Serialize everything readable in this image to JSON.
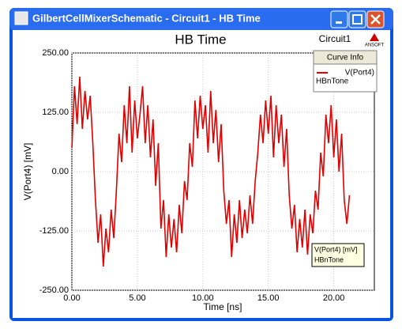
{
  "window": {
    "title": "GilbertCellMixerSchematic - Circuit1 - HB Time"
  },
  "chart_data": {
    "type": "line",
    "title": "HB Time",
    "subtitle": "Circuit1",
    "logo": "ANSOFT",
    "x_label": "Time [ns]",
    "y_label": "V(Port4) [mV]",
    "legend_title": "Curve Info",
    "legend_note": "HBnTone",
    "tooltip": {
      "name": "V(Port4) [mV]",
      "note": "HBnTone"
    },
    "xlim": [
      0,
      23.1
    ],
    "ylim": [
      -250,
      250
    ],
    "xticks": [
      {
        "value": 0,
        "label": "0.00"
      },
      {
        "value": 5,
        "label": "5.00"
      },
      {
        "value": 10,
        "label": "10.00"
      },
      {
        "value": 15,
        "label": "15.00"
      },
      {
        "value": 20,
        "label": "20.00"
      }
    ],
    "yticks": [
      {
        "value": -250,
        "label": "-250.00"
      },
      {
        "value": -125,
        "label": "-125.00"
      },
      {
        "value": 0,
        "label": "0.00"
      },
      {
        "value": 125,
        "label": "125.00"
      },
      {
        "value": 250,
        "label": "250.00"
      }
    ],
    "grid": true,
    "x": [
      0,
      0.2,
      0.4,
      0.6,
      0.8,
      1,
      1.2,
      1.4,
      1.6,
      1.8,
      2,
      2.2,
      2.4,
      2.6,
      2.8,
      3,
      3.2,
      3.4,
      3.6,
      3.8,
      4,
      4.2,
      4.4,
      4.6,
      4.8,
      5,
      5.2,
      5.4,
      5.6,
      5.8,
      6,
      6.2,
      6.4,
      6.6,
      6.8,
      7,
      7.2,
      7.4,
      7.6,
      7.8,
      8,
      8.2,
      8.4,
      8.6,
      8.8,
      9,
      9.2,
      9.4,
      9.6,
      9.8,
      10,
      10.2,
      10.4,
      10.6,
      10.8,
      11,
      11.2,
      11.4,
      11.6,
      11.8,
      12,
      12.2,
      12.4,
      12.6,
      12.8,
      13,
      13.2,
      13.4,
      13.6,
      13.8,
      14,
      14.2,
      14.4,
      14.6,
      14.8,
      15,
      15.2,
      15.4,
      15.6,
      15.8,
      16,
      16.2,
      16.4,
      16.6,
      16.8,
      17,
      17.2,
      17.4,
      17.6,
      17.8,
      18,
      18.2,
      18.4,
      18.6,
      18.8,
      19,
      19.2,
      19.4,
      19.6,
      19.8,
      20,
      20.2,
      20.4,
      20.6,
      20.8,
      21,
      21.2
    ],
    "series": [
      {
        "name": "V(Port4)",
        "color": "#e00000",
        "values": [
          50,
          180,
          100,
          200,
          90,
          170,
          110,
          160,
          60,
          -60,
          -150,
          -90,
          -200,
          -120,
          -170,
          -80,
          -140,
          -40,
          80,
          20,
          140,
          60,
          180,
          40,
          150,
          70,
          120,
          180,
          60,
          140,
          30,
          110,
          -30,
          60,
          -120,
          -60,
          -180,
          -90,
          -160,
          -100,
          -170,
          -70,
          -130,
          -20,
          -60,
          60,
          10,
          150,
          70,
          160,
          90,
          140,
          40,
          170,
          60,
          130,
          20,
          100,
          -40,
          -110,
          -60,
          -180,
          -90,
          -150,
          -60,
          -140,
          -80,
          -130,
          -50,
          -110,
          -20,
          40,
          120,
          60,
          150,
          80,
          160,
          30,
          140,
          60,
          120,
          10,
          90,
          -50,
          -120,
          -70,
          -170,
          -100,
          -160,
          -80,
          -175,
          -90,
          -130,
          -40,
          -80,
          40,
          -10,
          120,
          60,
          140,
          30,
          110,
          0,
          80,
          -60,
          -110,
          -50
        ]
      }
    ]
  }
}
